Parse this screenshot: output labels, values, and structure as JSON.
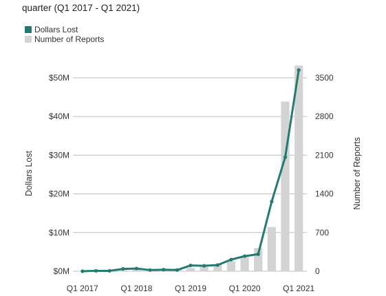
{
  "chart_data": {
    "type": "bar+line",
    "title_visible_fragment": "quarter (Q1 2017 - Q1 2021)",
    "categories": [
      "Q1 2017",
      "Q2 2017",
      "Q3 2017",
      "Q4 2017",
      "Q1 2018",
      "Q2 2018",
      "Q3 2018",
      "Q4 2018",
      "Q1 2019",
      "Q2 2019",
      "Q3 2019",
      "Q4 2019",
      "Q1 2020",
      "Q2 2020",
      "Q3 2020",
      "Q4 2020",
      "Q1 2021"
    ],
    "x_tick_labels": [
      "Q1 2017",
      "Q1 2018",
      "Q1 2019",
      "Q1 2020",
      "Q1 2021"
    ],
    "series": [
      {
        "name": "Number of Reports",
        "kind": "bar",
        "axis": "right",
        "color": "#d3d3d3",
        "values": [
          5,
          8,
          12,
          20,
          30,
          40,
          45,
          50,
          60,
          80,
          120,
          180,
          280,
          420,
          800,
          3070,
          3720
        ]
      },
      {
        "name": "Dollars Lost",
        "kind": "line",
        "axis": "left",
        "color": "#237a6e",
        "values": [
          0.0,
          0.1,
          0.1,
          0.6,
          0.7,
          0.3,
          0.4,
          0.3,
          1.5,
          1.4,
          1.6,
          3.0,
          3.9,
          4.4,
          18.0,
          29.5,
          52.0
        ]
      }
    ],
    "ylabel": "Dollars Lost",
    "y2label": "Number of Reports",
    "ylim": [
      0,
      50
    ],
    "y_ticks": [
      0,
      10,
      20,
      30,
      40,
      50
    ],
    "y_tick_labels": [
      "$0M",
      "$10M",
      "$20M",
      "$30M",
      "$40M",
      "$50M"
    ],
    "y2lim": [
      0,
      3500
    ],
    "y2_ticks": [
      0,
      700,
      1400,
      2100,
      2800,
      3500
    ],
    "y2_tick_labels": [
      "0",
      "700",
      "1400",
      "2100",
      "2800",
      "3500"
    ],
    "grid": true,
    "legend_position": "top-left",
    "legend": [
      "Dollars Lost",
      "Number of Reports"
    ]
  }
}
